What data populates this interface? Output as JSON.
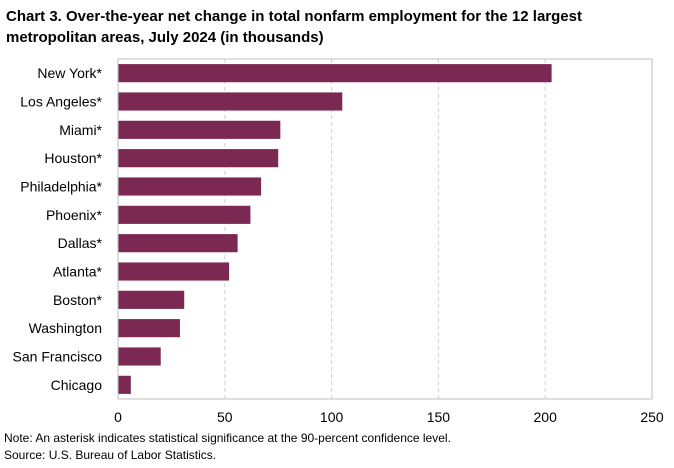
{
  "title": "Chart 3. Over-the-year net change in total nonfarm employment for the 12 largest metropolitan areas, July 2024 (in thousands)",
  "note": "Note: An asterisk indicates statistical significance at the 90-percent confidence level.",
  "source": "Source: U.S. Bureau of Labor Statistics.",
  "chart_data": {
    "type": "bar",
    "orientation": "horizontal",
    "categories": [
      "New York*",
      "Los Angeles*",
      "Miami*",
      "Houston*",
      "Philadelphia*",
      "Phoenix*",
      "Dallas*",
      "Atlanta*",
      "Boston*",
      "Washington",
      "San Francisco",
      "Chicago"
    ],
    "values": [
      203,
      105,
      76,
      75,
      67,
      62,
      56,
      52,
      31,
      29,
      20,
      6
    ],
    "xlim": [
      0,
      250
    ],
    "xticks": [
      0,
      50,
      100,
      150,
      200,
      250
    ],
    "xlabel": "",
    "ylabel": "",
    "grid": "vertical dashed",
    "bar_color": "#7b2852"
  }
}
